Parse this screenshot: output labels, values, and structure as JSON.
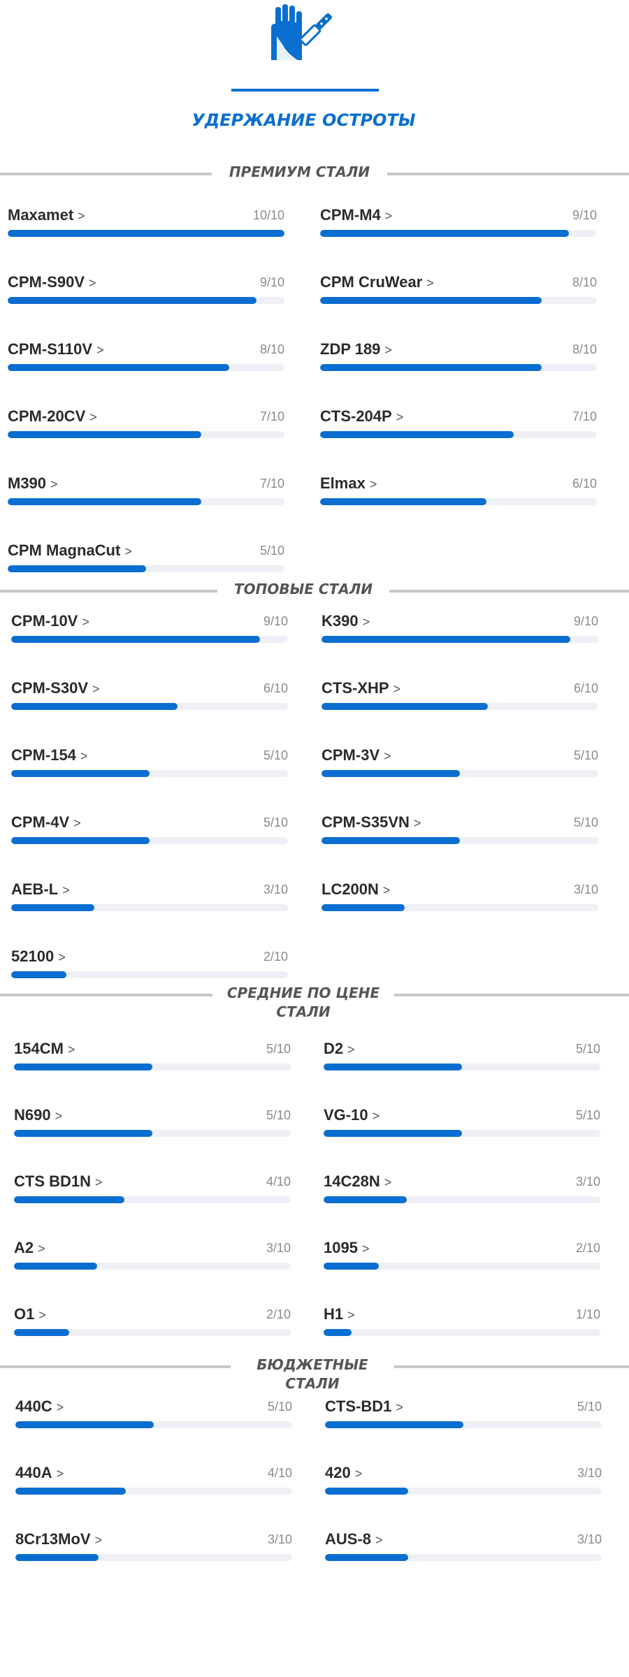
{
  "header": {
    "icon": "knife-glove-icon",
    "title": "УДЕРЖАНИЕ ОСТРОТЫ",
    "accent_color": "#0a6ed1",
    "arrow": ">"
  },
  "sections": [
    {
      "title": "ПРЕМИУМ СТАЛИ",
      "items": [
        {
          "name": "Maxamet",
          "score": "10/10",
          "value": 10
        },
        {
          "name": "CPM-M4",
          "score": "9/10",
          "value": 9
        },
        {
          "name": "CPM-S90V",
          "score": "9/10",
          "value": 9
        },
        {
          "name": "CPM CruWear",
          "score": "8/10",
          "value": 8
        },
        {
          "name": "CPM-S110V",
          "score": "8/10",
          "value": 8
        },
        {
          "name": "ZDP 189",
          "score": "8/10",
          "value": 8
        },
        {
          "name": "CPM-20CV",
          "score": "7/10",
          "value": 7
        },
        {
          "name": "CTS-204P",
          "score": "7/10",
          "value": 7
        },
        {
          "name": "M390",
          "score": "7/10",
          "value": 7
        },
        {
          "name": "Elmax",
          "score": "6/10",
          "value": 6
        },
        {
          "name": "CPM MagnaCut",
          "score": "5/10",
          "value": 5
        }
      ]
    },
    {
      "title": "ТОПОВЫЕ СТАЛИ",
      "items": [
        {
          "name": "CPM-10V",
          "score": "9/10",
          "value": 9
        },
        {
          "name": "K390",
          "score": "9/10",
          "value": 9
        },
        {
          "name": "CPM-S30V",
          "score": "6/10",
          "value": 6
        },
        {
          "name": "CTS-XHP",
          "score": "6/10",
          "value": 6
        },
        {
          "name": "CPM-154",
          "score": "5/10",
          "value": 5
        },
        {
          "name": "CPM-3V",
          "score": "5/10",
          "value": 5
        },
        {
          "name": "CPM-4V",
          "score": "5/10",
          "value": 5
        },
        {
          "name": "CPM-S35VN",
          "score": "5/10",
          "value": 5
        },
        {
          "name": "AEB-L",
          "score": "3/10",
          "value": 3
        },
        {
          "name": "LC200N",
          "score": "3/10",
          "value": 3
        },
        {
          "name": "52100",
          "score": "2/10",
          "value": 2
        }
      ]
    },
    {
      "title": "СРЕДНИЕ ПО ЦЕНЕ\nСТАЛИ",
      "items": [
        {
          "name": "154CM",
          "score": "5/10",
          "value": 5
        },
        {
          "name": "D2",
          "score": "5/10",
          "value": 5
        },
        {
          "name": "N690",
          "score": "5/10",
          "value": 5
        },
        {
          "name": "VG-10",
          "score": "5/10",
          "value": 5
        },
        {
          "name": "CTS BD1N",
          "score": "4/10",
          "value": 4
        },
        {
          "name": "14C28N",
          "score": "3/10",
          "value": 3
        },
        {
          "name": "A2",
          "score": "3/10",
          "value": 3
        },
        {
          "name": "1095",
          "score": "2/10",
          "value": 2
        },
        {
          "name": "O1",
          "score": "2/10",
          "value": 2
        },
        {
          "name": "H1",
          "score": "1/10",
          "value": 1
        }
      ]
    },
    {
      "title": "БЮДЖЕТНЫЕ\nСТАЛИ",
      "items": [
        {
          "name": "440C",
          "score": "5/10",
          "value": 5
        },
        {
          "name": "CTS-BD1",
          "score": "5/10",
          "value": 5
        },
        {
          "name": "440A",
          "score": "4/10",
          "value": 4
        },
        {
          "name": "420",
          "score": "3/10",
          "value": 3
        },
        {
          "name": "8Cr13MoV",
          "score": "3/10",
          "value": 3
        },
        {
          "name": "AUS-8",
          "score": "3/10",
          "value": 3
        }
      ]
    }
  ]
}
